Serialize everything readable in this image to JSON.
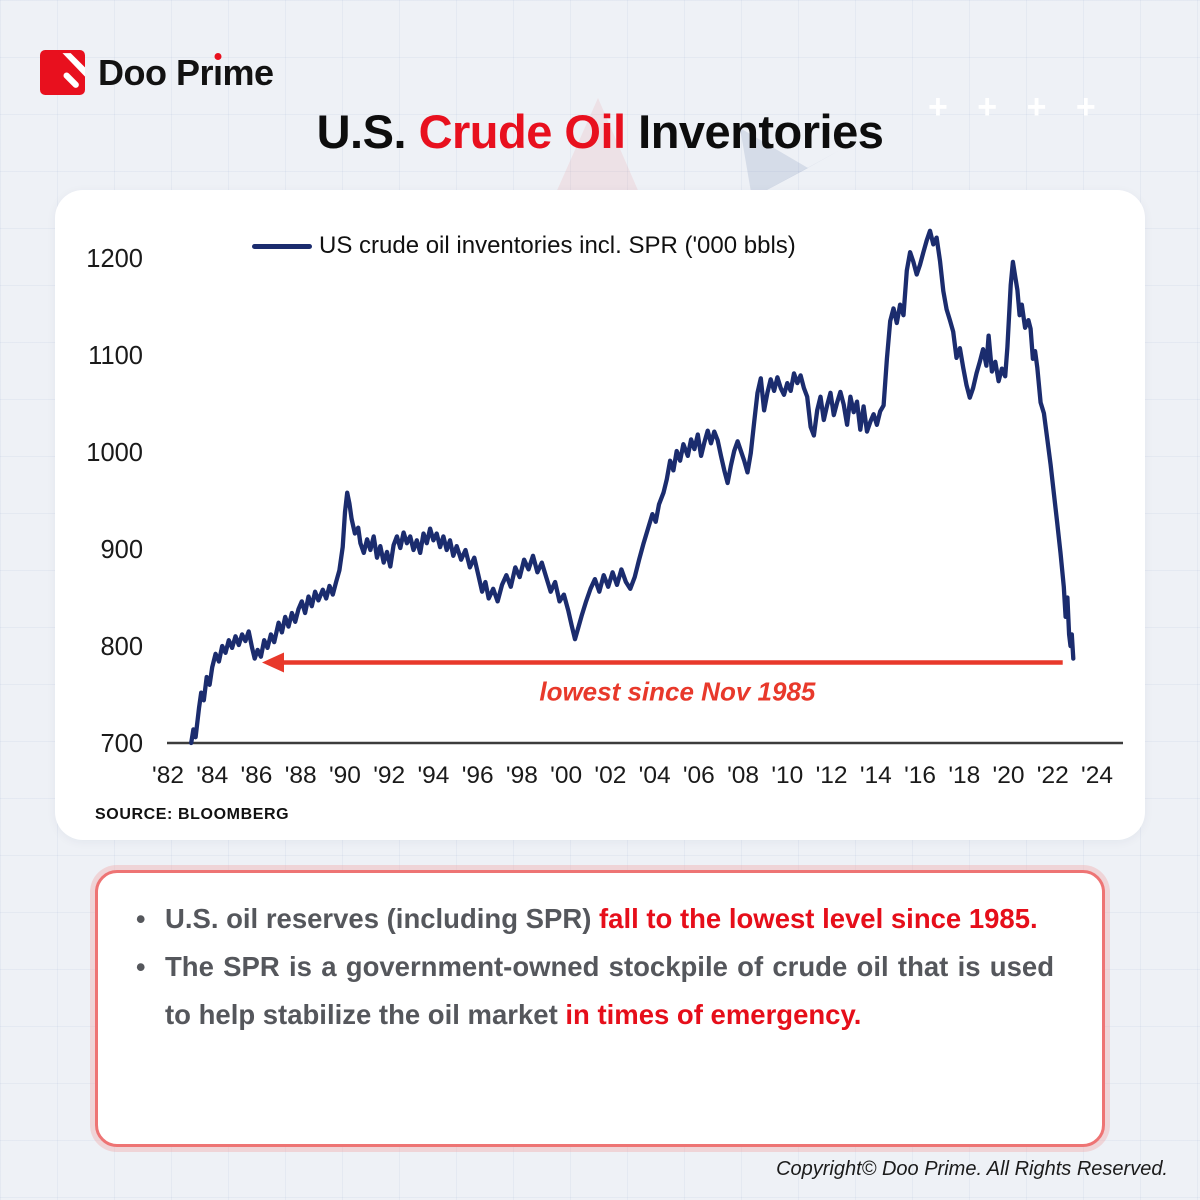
{
  "brand": {
    "name": "Doo Prime"
  },
  "decor": {
    "plus_signs": "+ + + +"
  },
  "title": {
    "segments": [
      {
        "text": "U.S. ",
        "red": false
      },
      {
        "text": "Crude Oil",
        "red": true
      },
      {
        "text": " Inventories",
        "red": false
      }
    ]
  },
  "chart_data": {
    "type": "line",
    "xlim": [
      1982,
      2024
    ],
    "ylim": [
      700,
      1200
    ],
    "grid": false,
    "legend_position": "top-left-inside",
    "source": "SOURCE: BLOOMBERG",
    "y_ticks": [
      1200,
      1100,
      1000,
      900,
      800,
      700
    ],
    "x_tick_years": [
      1982,
      1984,
      1986,
      1988,
      1990,
      1992,
      1994,
      1996,
      1998,
      2000,
      2002,
      2004,
      2006,
      2008,
      2010,
      2012,
      2014,
      2016,
      2018,
      2020,
      2022,
      2024
    ],
    "x_tick_labels": [
      "'82",
      "'84",
      "'86",
      "'88",
      "'90",
      "'92",
      "'94",
      "'96",
      "'98",
      "'00",
      "'02",
      "'04",
      "'06",
      "'08",
      "'10",
      "'12",
      "'14",
      "'16",
      "'18",
      "'20",
      "'22",
      "'24"
    ],
    "annotation": {
      "text": "lowest since Nov 1985",
      "value": 783,
      "from_year": 2022.45,
      "to_year": 1986.25,
      "color": "#e8392b"
    },
    "series": [
      {
        "name": "US crude oil inventories incl. SPR ('000 bbls)",
        "color": "#1b2c6e",
        "points": [
          [
            1983.05,
            700
          ],
          [
            1983.15,
            714
          ],
          [
            1983.25,
            706
          ],
          [
            1983.4,
            736
          ],
          [
            1983.5,
            752
          ],
          [
            1983.62,
            744
          ],
          [
            1983.75,
            768
          ],
          [
            1983.88,
            760
          ],
          [
            1984.0,
            778
          ],
          [
            1984.15,
            792
          ],
          [
            1984.3,
            784
          ],
          [
            1984.45,
            800
          ],
          [
            1984.6,
            793
          ],
          [
            1984.75,
            806
          ],
          [
            1984.9,
            798
          ],
          [
            1985.05,
            810
          ],
          [
            1985.2,
            801
          ],
          [
            1985.35,
            812
          ],
          [
            1985.5,
            805
          ],
          [
            1985.65,
            815
          ],
          [
            1985.8,
            798
          ],
          [
            1985.92,
            787
          ],
          [
            1986.05,
            796
          ],
          [
            1986.2,
            789
          ],
          [
            1986.35,
            806
          ],
          [
            1986.5,
            798
          ],
          [
            1986.65,
            812
          ],
          [
            1986.8,
            804
          ],
          [
            1987.0,
            824
          ],
          [
            1987.15,
            814
          ],
          [
            1987.3,
            830
          ],
          [
            1987.45,
            820
          ],
          [
            1987.6,
            834
          ],
          [
            1987.75,
            825
          ],
          [
            1987.9,
            838
          ],
          [
            1988.05,
            846
          ],
          [
            1988.2,
            834
          ],
          [
            1988.35,
            851
          ],
          [
            1988.5,
            841
          ],
          [
            1988.65,
            856
          ],
          [
            1988.8,
            847
          ],
          [
            1989.0,
            858
          ],
          [
            1989.15,
            849
          ],
          [
            1989.3,
            862
          ],
          [
            1989.45,
            853
          ],
          [
            1989.6,
            866
          ],
          [
            1989.75,
            878
          ],
          [
            1989.9,
            902
          ],
          [
            1990.0,
            938
          ],
          [
            1990.1,
            958
          ],
          [
            1990.2,
            947
          ],
          [
            1990.3,
            931
          ],
          [
            1990.45,
            916
          ],
          [
            1990.6,
            922
          ],
          [
            1990.7,
            906
          ],
          [
            1990.85,
            896
          ],
          [
            1991.0,
            910
          ],
          [
            1991.15,
            899
          ],
          [
            1991.3,
            913
          ],
          [
            1991.45,
            891
          ],
          [
            1991.6,
            903
          ],
          [
            1991.75,
            886
          ],
          [
            1991.9,
            897
          ],
          [
            1992.05,
            882
          ],
          [
            1992.2,
            904
          ],
          [
            1992.35,
            913
          ],
          [
            1992.5,
            901
          ],
          [
            1992.65,
            917
          ],
          [
            1992.8,
            906
          ],
          [
            1992.95,
            913
          ],
          [
            1993.1,
            899
          ],
          [
            1993.25,
            909
          ],
          [
            1993.4,
            896
          ],
          [
            1993.55,
            916
          ],
          [
            1993.7,
            906
          ],
          [
            1993.85,
            921
          ],
          [
            1994.0,
            909
          ],
          [
            1994.15,
            916
          ],
          [
            1994.3,
            902
          ],
          [
            1994.45,
            913
          ],
          [
            1994.6,
            899
          ],
          [
            1994.75,
            909
          ],
          [
            1994.9,
            893
          ],
          [
            1995.05,
            903
          ],
          [
            1995.25,
            889
          ],
          [
            1995.45,
            899
          ],
          [
            1995.65,
            881
          ],
          [
            1995.85,
            891
          ],
          [
            1996.05,
            871
          ],
          [
            1996.2,
            856
          ],
          [
            1996.35,
            866
          ],
          [
            1996.5,
            849
          ],
          [
            1996.7,
            859
          ],
          [
            1996.9,
            846
          ],
          [
            1997.1,
            863
          ],
          [
            1997.3,
            873
          ],
          [
            1997.5,
            861
          ],
          [
            1997.7,
            881
          ],
          [
            1997.9,
            871
          ],
          [
            1998.1,
            889
          ],
          [
            1998.3,
            879
          ],
          [
            1998.5,
            893
          ],
          [
            1998.7,
            876
          ],
          [
            1998.9,
            886
          ],
          [
            1999.1,
            871
          ],
          [
            1999.3,
            856
          ],
          [
            1999.5,
            866
          ],
          [
            1999.7,
            846
          ],
          [
            1999.9,
            853
          ],
          [
            2000.1,
            836
          ],
          [
            2000.25,
            821
          ],
          [
            2000.4,
            807
          ],
          [
            2000.55,
            819
          ],
          [
            2000.7,
            831
          ],
          [
            2000.9,
            846
          ],
          [
            2001.1,
            859
          ],
          [
            2001.3,
            869
          ],
          [
            2001.5,
            856
          ],
          [
            2001.7,
            873
          ],
          [
            2001.9,
            861
          ],
          [
            2002.1,
            876
          ],
          [
            2002.3,
            863
          ],
          [
            2002.5,
            879
          ],
          [
            2002.7,
            866
          ],
          [
            2002.9,
            859
          ],
          [
            2003.1,
            871
          ],
          [
            2003.3,
            889
          ],
          [
            2003.5,
            906
          ],
          [
            2003.7,
            921
          ],
          [
            2003.9,
            936
          ],
          [
            2004.05,
            928
          ],
          [
            2004.2,
            946
          ],
          [
            2004.4,
            958
          ],
          [
            2004.55,
            972
          ],
          [
            2004.7,
            991
          ],
          [
            2004.85,
            981
          ],
          [
            2005.0,
            1001
          ],
          [
            2005.15,
            991
          ],
          [
            2005.3,
            1008
          ],
          [
            2005.5,
            996
          ],
          [
            2005.65,
            1013
          ],
          [
            2005.8,
            1003
          ],
          [
            2005.95,
            1018
          ],
          [
            2006.1,
            996
          ],
          [
            2006.25,
            1010
          ],
          [
            2006.4,
            1022
          ],
          [
            2006.55,
            1009
          ],
          [
            2006.7,
            1021
          ],
          [
            2006.85,
            1012
          ],
          [
            2007.0,
            996
          ],
          [
            2007.15,
            981
          ],
          [
            2007.3,
            968
          ],
          [
            2007.45,
            986
          ],
          [
            2007.6,
            1001
          ],
          [
            2007.75,
            1011
          ],
          [
            2007.9,
            1001
          ],
          [
            2008.05,
            991
          ],
          [
            2008.2,
            979
          ],
          [
            2008.35,
            999
          ],
          [
            2008.5,
            1031
          ],
          [
            2008.65,
            1061
          ],
          [
            2008.8,
            1076
          ],
          [
            2008.95,
            1043
          ],
          [
            2009.1,
            1061
          ],
          [
            2009.25,
            1075
          ],
          [
            2009.4,
            1063
          ],
          [
            2009.55,
            1077
          ],
          [
            2009.7,
            1066
          ],
          [
            2009.85,
            1059
          ],
          [
            2010.0,
            1071
          ],
          [
            2010.15,
            1063
          ],
          [
            2010.3,
            1081
          ],
          [
            2010.45,
            1071
          ],
          [
            2010.6,
            1079
          ],
          [
            2010.75,
            1066
          ],
          [
            2010.9,
            1057
          ],
          [
            2011.05,
            1026
          ],
          [
            2011.2,
            1017
          ],
          [
            2011.35,
            1043
          ],
          [
            2011.5,
            1057
          ],
          [
            2011.65,
            1033
          ],
          [
            2011.8,
            1048
          ],
          [
            2011.95,
            1061
          ],
          [
            2012.1,
            1038
          ],
          [
            2012.25,
            1051
          ],
          [
            2012.4,
            1062
          ],
          [
            2012.55,
            1049
          ],
          [
            2012.7,
            1028
          ],
          [
            2012.85,
            1057
          ],
          [
            2013.0,
            1041
          ],
          [
            2013.15,
            1052
          ],
          [
            2013.3,
            1023
          ],
          [
            2013.45,
            1047
          ],
          [
            2013.6,
            1021
          ],
          [
            2013.75,
            1031
          ],
          [
            2013.9,
            1039
          ],
          [
            2014.05,
            1028
          ],
          [
            2014.2,
            1042
          ],
          [
            2014.35,
            1048
          ],
          [
            2014.5,
            1096
          ],
          [
            2014.65,
            1135
          ],
          [
            2014.8,
            1148
          ],
          [
            2014.95,
            1133
          ],
          [
            2015.1,
            1152
          ],
          [
            2015.25,
            1141
          ],
          [
            2015.4,
            1187
          ],
          [
            2015.55,
            1206
          ],
          [
            2015.7,
            1196
          ],
          [
            2015.85,
            1183
          ],
          [
            2016.0,
            1193
          ],
          [
            2016.15,
            1206
          ],
          [
            2016.3,
            1218
          ],
          [
            2016.45,
            1228
          ],
          [
            2016.6,
            1214
          ],
          [
            2016.75,
            1221
          ],
          [
            2016.9,
            1197
          ],
          [
            2017.05,
            1166
          ],
          [
            2017.2,
            1147
          ],
          [
            2017.35,
            1136
          ],
          [
            2017.5,
            1124
          ],
          [
            2017.65,
            1097
          ],
          [
            2017.8,
            1107
          ],
          [
            2017.95,
            1087
          ],
          [
            2018.1,
            1069
          ],
          [
            2018.25,
            1056
          ],
          [
            2018.4,
            1066
          ],
          [
            2018.55,
            1081
          ],
          [
            2018.7,
            1093
          ],
          [
            2018.85,
            1106
          ],
          [
            2019.0,
            1089
          ],
          [
            2019.1,
            1120
          ],
          [
            2019.25,
            1083
          ],
          [
            2019.4,
            1093
          ],
          [
            2019.55,
            1073
          ],
          [
            2019.7,
            1086
          ],
          [
            2019.85,
            1078
          ],
          [
            2019.95,
            1108
          ],
          [
            2020.1,
            1172
          ],
          [
            2020.2,
            1196
          ],
          [
            2020.3,
            1181
          ],
          [
            2020.4,
            1167
          ],
          [
            2020.5,
            1141
          ],
          [
            2020.6,
            1152
          ],
          [
            2020.75,
            1128
          ],
          [
            2020.9,
            1136
          ],
          [
            2021.0,
            1127
          ],
          [
            2021.1,
            1096
          ],
          [
            2021.2,
            1104
          ],
          [
            2021.3,
            1087
          ],
          [
            2021.45,
            1051
          ],
          [
            2021.6,
            1040
          ],
          [
            2021.75,
            1014
          ],
          [
            2021.9,
            987
          ],
          [
            2022.05,
            957
          ],
          [
            2022.2,
            927
          ],
          [
            2022.35,
            896
          ],
          [
            2022.5,
            861
          ],
          [
            2022.58,
            830
          ],
          [
            2022.66,
            850
          ],
          [
            2022.74,
            812
          ],
          [
            2022.8,
            800
          ],
          [
            2022.86,
            812
          ],
          [
            2022.93,
            787
          ]
        ]
      }
    ]
  },
  "infobox": {
    "bullets": [
      {
        "segments": [
          {
            "text": "U.S. oil reserves (including SPR) ",
            "red": false
          },
          {
            "text": "fall to the lowest level since 1985.",
            "red": true
          }
        ]
      },
      {
        "segments": [
          {
            "text": "The SPR is a government-owned stockpile of crude oil that is used to help stabilize the oil market ",
            "red": false
          },
          {
            "text": "in times of emergency.",
            "red": true
          }
        ]
      }
    ]
  },
  "footer": {
    "copyright": "Copyright© Doo Prime. All Rights Reserved."
  },
  "colors": {
    "brand_red": "#e8101e",
    "series_navy": "#1b2c6e",
    "annotation_red": "#e8392b",
    "body_gray": "#55575c",
    "background": "#eef1f6"
  }
}
